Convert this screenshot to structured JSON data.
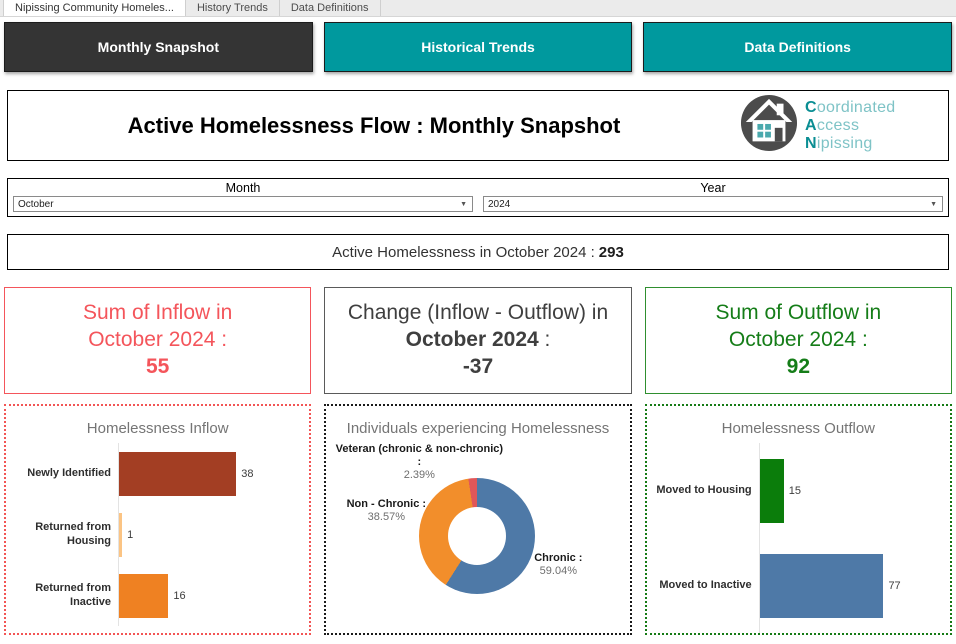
{
  "sheet_tabs": [
    {
      "label": "Nipissing Community Homeles...",
      "active": true
    },
    {
      "label": "History Trends",
      "active": false
    },
    {
      "label": "Data Definitions",
      "active": false
    }
  ],
  "nav_buttons": [
    {
      "label": "Monthly Snapshot",
      "active": true
    },
    {
      "label": "Historical Trends",
      "active": false
    },
    {
      "label": "Data Definitions",
      "active": false
    }
  ],
  "header": {
    "title": "Active Homelessness Flow : Monthly Snapshot",
    "logo_lines": [
      {
        "initial": "C",
        "rest": "oordinated"
      },
      {
        "initial": "A",
        "rest": "ccess"
      },
      {
        "initial": "N",
        "rest": "ipissing"
      }
    ]
  },
  "filters": {
    "month": {
      "label": "Month",
      "value": "October"
    },
    "year": {
      "label": "Year",
      "value": "2024"
    }
  },
  "summary": {
    "text": "Active Homelessness in October 2024 :",
    "value": "293"
  },
  "kpis": [
    {
      "line1": "Sum of Inflow in",
      "line2": "October 2024 :",
      "value": "55",
      "color": "#f4555b"
    },
    {
      "line1": "Change (Inflow - Outflow) in",
      "line2_bold": "October 2024",
      "line2_suffix": " :",
      "value": "-37",
      "color": "#3f3f3f"
    },
    {
      "line1": "Sum of Outflow in",
      "line2": "October 2024 :",
      "value": "92",
      "color": "#157d18"
    }
  ],
  "chart_data": [
    {
      "type": "bar",
      "orientation": "horizontal",
      "title": "Homelessness Inflow",
      "categories": [
        "Newly Identified",
        "Returned from Housing",
        "Returned from Inactive"
      ],
      "values": [
        38,
        1,
        16
      ],
      "colors": [
        "#a33e23",
        "#fbc484",
        "#ef8122"
      ],
      "xlabel": "",
      "ylabel": "",
      "xlim": [
        0,
        50
      ],
      "border_color": "#f25555"
    },
    {
      "type": "pie",
      "style": "donut",
      "title": "Individuals experiencing Homelessness",
      "slices": [
        {
          "label": "Chronic :",
          "pct": "59.04%",
          "value": 59.04,
          "color": "#4e79a7"
        },
        {
          "label": "Non - Chronic :",
          "pct": "38.57%",
          "value": 38.57,
          "color": "#f28e2b"
        },
        {
          "label": "Veteran (chronic & non-chronic) :",
          "pct": "2.39%",
          "value": 2.39,
          "color": "#e15759"
        }
      ],
      "border_color": "#1a1a1a"
    },
    {
      "type": "bar",
      "orientation": "horizontal",
      "title": "Homelessness Outflow",
      "categories": [
        "Moved to Housing",
        "Moved to Inactive"
      ],
      "values": [
        15,
        77
      ],
      "colors": [
        "#0b7d0b",
        "#4e79a7"
      ],
      "xlabel": "",
      "ylabel": "",
      "xlim": [
        0,
        96
      ],
      "border_color": "#157a15"
    }
  ],
  "theme_colors": {
    "teal_button": "#00999e",
    "dark_button": "#343434",
    "logo_teal_dark": "#0a8e93",
    "logo_teal_light": "#7ec3c6"
  }
}
